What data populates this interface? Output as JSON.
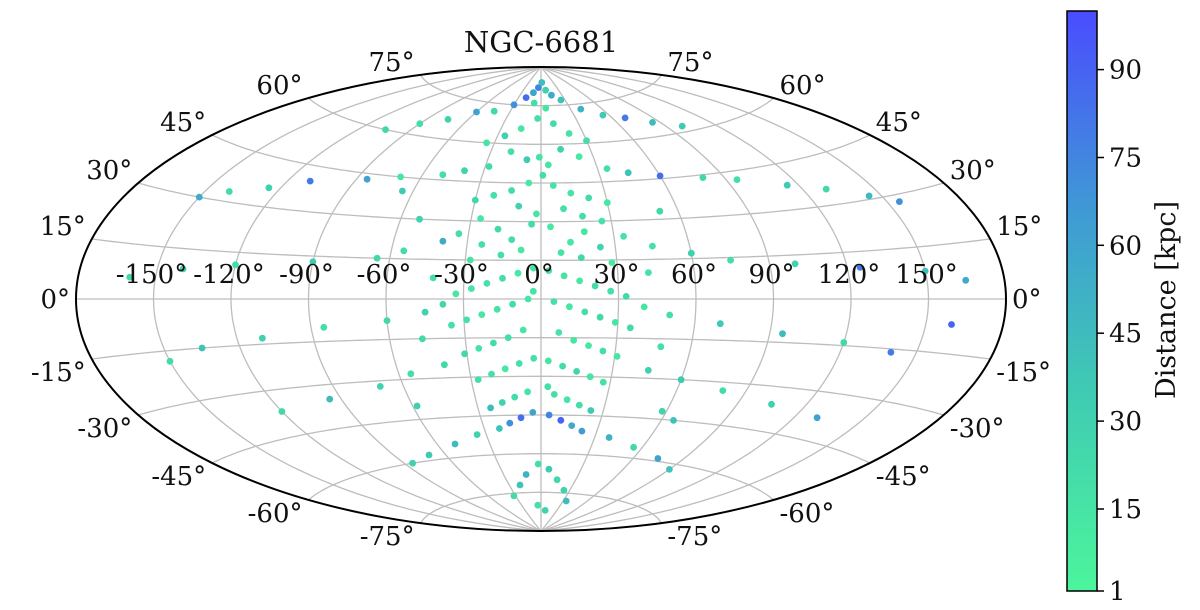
{
  "chart_data": {
    "type": "scatter",
    "projection": "aitoff",
    "title": "NGC-6681",
    "x_tick_labels": [
      "-150°",
      "-120°",
      "-90°",
      "-60°",
      "-30°",
      "0°",
      "30°",
      "60°",
      "90°",
      "120°",
      "150°"
    ],
    "x_tick_values": [
      -150,
      -120,
      -90,
      -60,
      -30,
      0,
      30,
      60,
      90,
      120,
      150
    ],
    "y_tick_labels": [
      "-75°",
      "-60°",
      "-45°",
      "-30°",
      "-15°",
      "0°",
      "15°",
      "30°",
      "45°",
      "60°",
      "75°"
    ],
    "y_tick_values": [
      -75,
      -60,
      -45,
      -30,
      -15,
      0,
      15,
      30,
      45,
      60,
      75
    ],
    "xlim": [
      -180,
      180
    ],
    "ylim": [
      -90,
      90
    ],
    "grid": true,
    "colorbar": {
      "label": "Distance [kpc]",
      "tick_labels": [
        "1",
        "15",
        "30",
        "45",
        "60",
        "75",
        "90"
      ],
      "tick_values": [
        1,
        15,
        30,
        45,
        60,
        75,
        90
      ],
      "range": [
        1,
        100
      ],
      "color_low": "#4cf59c",
      "color_high": "#4a4cff"
    },
    "series": [
      {
        "marker_color_by": "distance_kpc",
        "points": [
          [
            -5,
            82,
            75
          ],
          [
            2,
            84,
            45
          ],
          [
            -12,
            80,
            60
          ],
          [
            8,
            81,
            30
          ],
          [
            -20,
            78,
            85
          ],
          [
            15,
            79,
            55
          ],
          [
            -8,
            76,
            20
          ],
          [
            25,
            77,
            40
          ],
          [
            -30,
            75,
            70
          ],
          [
            5,
            74,
            15
          ],
          [
            40,
            73,
            50
          ],
          [
            -45,
            72,
            25
          ],
          [
            55,
            70,
            35
          ],
          [
            -60,
            71,
            60
          ],
          [
            70,
            68,
            80
          ],
          [
            -75,
            67,
            30
          ],
          [
            85,
            65,
            45
          ],
          [
            -90,
            64,
            20
          ],
          [
            100,
            62,
            35
          ],
          [
            -105,
            60,
            25
          ],
          [
            -3,
            70,
            18
          ],
          [
            10,
            68,
            22
          ],
          [
            -15,
            66,
            12
          ],
          [
            20,
            64,
            16
          ],
          [
            -25,
            63,
            30
          ],
          [
            30,
            61,
            20
          ],
          [
            -35,
            60,
            14
          ],
          [
            12,
            58,
            28
          ],
          [
            -18,
            57,
            19
          ],
          [
            22,
            55,
            12
          ],
          [
            -8,
            54,
            35
          ],
          [
            4,
            52,
            15
          ],
          [
            -28,
            51,
            22
          ],
          [
            35,
            50,
            18
          ],
          [
            -40,
            49,
            28
          ],
          [
            45,
            48,
            40
          ],
          [
            -50,
            47,
            20
          ],
          [
            60,
            46,
            85
          ],
          [
            -70,
            45,
            15
          ],
          [
            80,
            44,
            25
          ],
          [
            -85,
            43,
            60
          ],
          [
            95,
            42,
            20
          ],
          [
            -110,
            40,
            80
          ],
          [
            115,
            38,
            35
          ],
          [
            -125,
            36,
            30
          ],
          [
            130,
            35,
            25
          ],
          [
            -140,
            33,
            22
          ],
          [
            145,
            31,
            45
          ],
          [
            -150,
            30,
            55
          ],
          [
            155,
            28,
            70
          ],
          [
            -6,
            45,
            12
          ],
          [
            6,
            44,
            16
          ],
          [
            -14,
            42,
            20
          ],
          [
            14,
            41,
            14
          ],
          [
            -22,
            40,
            18
          ],
          [
            22,
            39,
            22
          ],
          [
            -30,
            38,
            26
          ],
          [
            30,
            37,
            12
          ],
          [
            -10,
            36,
            30
          ],
          [
            10,
            35,
            18
          ],
          [
            -2,
            33,
            15
          ],
          [
            18,
            32,
            20
          ],
          [
            -26,
            31,
            13
          ],
          [
            26,
            30,
            17
          ],
          [
            -4,
            29,
            22
          ],
          [
            4,
            28,
            11
          ],
          [
            -18,
            27,
            25
          ],
          [
            18,
            26,
            14
          ],
          [
            -34,
            25,
            19
          ],
          [
            34,
            24,
            16
          ],
          [
            -12,
            23,
            21
          ],
          [
            12,
            22,
            13
          ],
          [
            -24,
            21,
            18
          ],
          [
            24,
            20,
            27
          ],
          [
            -8,
            19,
            12
          ],
          [
            8,
            18,
            15
          ],
          [
            -16,
            17,
            20
          ],
          [
            16,
            16,
            24
          ],
          [
            -28,
            15,
            16
          ],
          [
            28,
            14,
            11
          ],
          [
            -40,
            22,
            55
          ],
          [
            45,
            20,
            18
          ],
          [
            -55,
            18,
            22
          ],
          [
            60,
            17,
            30
          ],
          [
            -65,
            15,
            25
          ],
          [
            75,
            14,
            20
          ],
          [
            -90,
            13,
            35
          ],
          [
            100,
            12,
            28
          ],
          [
            -120,
            11,
            22
          ],
          [
            125,
            10,
            80
          ],
          [
            -140,
            9,
            30
          ],
          [
            150,
            8,
            40
          ],
          [
            -160,
            6,
            25
          ],
          [
            165,
            5,
            55
          ],
          [
            -3,
            12,
            14
          ],
          [
            3,
            11,
            18
          ],
          [
            -9,
            10,
            12
          ],
          [
            9,
            9,
            16
          ],
          [
            -15,
            8,
            20
          ],
          [
            15,
            7,
            13
          ],
          [
            -21,
            6,
            17
          ],
          [
            21,
            5,
            22
          ],
          [
            -27,
            4,
            15
          ],
          [
            27,
            3,
            19
          ],
          [
            -33,
            2,
            12
          ],
          [
            33,
            1,
            24
          ],
          [
            -5,
            0,
            14
          ],
          [
            5,
            -1,
            18
          ],
          [
            -11,
            -2,
            21
          ],
          [
            11,
            -3,
            13
          ],
          [
            -17,
            -4,
            16
          ],
          [
            17,
            -5,
            20
          ],
          [
            -23,
            -6,
            12
          ],
          [
            23,
            -7,
            25
          ],
          [
            -29,
            -8,
            17
          ],
          [
            29,
            -9,
            14
          ],
          [
            -35,
            -10,
            19
          ],
          [
            35,
            -11,
            22
          ],
          [
            -7,
            -12,
            13
          ],
          [
            7,
            -13,
            16
          ],
          [
            -45,
            -5,
            30
          ],
          [
            50,
            -6,
            20
          ],
          [
            -60,
            -8,
            25
          ],
          [
            70,
            -9,
            35
          ],
          [
            -85,
            -10,
            20
          ],
          [
            95,
            -12,
            45
          ],
          [
            -110,
            -13,
            30
          ],
          [
            120,
            -14,
            25
          ],
          [
            -135,
            -15,
            40
          ],
          [
            140,
            -16,
            80
          ],
          [
            -150,
            -18,
            22
          ],
          [
            160,
            -7,
            90
          ],
          [
            -13,
            -15,
            18
          ],
          [
            13,
            -16,
            14
          ],
          [
            -19,
            -17,
            21
          ],
          [
            19,
            -18,
            12
          ],
          [
            -25,
            -19,
            16
          ],
          [
            25,
            -20,
            20
          ],
          [
            -31,
            -21,
            24
          ],
          [
            31,
            -22,
            13
          ],
          [
            -3,
            -23,
            17
          ],
          [
            3,
            -24,
            15
          ],
          [
            -9,
            -25,
            19
          ],
          [
            9,
            -26,
            22
          ],
          [
            -15,
            -27,
            12
          ],
          [
            15,
            -28,
            26
          ],
          [
            -21,
            -29,
            18
          ],
          [
            21,
            -30,
            14
          ],
          [
            -27,
            -31,
            20
          ],
          [
            27,
            -32,
            16
          ],
          [
            -40,
            -25,
            25
          ],
          [
            45,
            -27,
            30
          ],
          [
            -55,
            -28,
            20
          ],
          [
            60,
            -30,
            35
          ],
          [
            -70,
            -32,
            28
          ],
          [
            80,
            -33,
            22
          ],
          [
            -95,
            -35,
            45
          ],
          [
            105,
            -36,
            30
          ],
          [
            -120,
            -37,
            25
          ],
          [
            130,
            -38,
            60
          ],
          [
            -6,
            -36,
            15
          ],
          [
            6,
            -37,
            18
          ],
          [
            -12,
            -38,
            22
          ],
          [
            12,
            -39,
            14
          ],
          [
            -18,
            -40,
            30
          ],
          [
            18,
            -41,
            20
          ],
          [
            -24,
            -42,
            45
          ],
          [
            24,
            -43,
            35
          ],
          [
            -4,
            -44,
            60
          ],
          [
            4,
            -45,
            75
          ],
          [
            -10,
            -46,
            85
          ],
          [
            10,
            -47,
            90
          ],
          [
            -16,
            -48,
            70
          ],
          [
            16,
            -49,
            55
          ],
          [
            -22,
            -50,
            40
          ],
          [
            22,
            -51,
            65
          ],
          [
            -35,
            -52,
            30
          ],
          [
            38,
            -53,
            50
          ],
          [
            -50,
            -55,
            45
          ],
          [
            55,
            -56,
            25
          ],
          [
            -70,
            -58,
            35
          ],
          [
            75,
            -59,
            60
          ],
          [
            -85,
            -60,
            28
          ],
          [
            90,
            -62,
            40
          ],
          [
            -2,
            -64,
            20
          ],
          [
            6,
            -66,
            35
          ],
          [
            -12,
            -68,
            50
          ],
          [
            14,
            -70,
            25
          ],
          [
            -20,
            -72,
            40
          ],
          [
            24,
            -74,
            30
          ],
          [
            -32,
            -76,
            22
          ],
          [
            34,
            -78,
            45
          ],
          [
            -5,
            -80,
            18
          ],
          [
            8,
            -82,
            28
          ],
          [
            -1,
            55,
            16
          ],
          [
            1,
            48,
            20
          ],
          [
            -3,
            3,
            15
          ],
          [
            3,
            -34,
            18
          ],
          [
            -38,
            -2,
            26
          ],
          [
            40,
            -3,
            14
          ],
          [
            -42,
            8,
            20
          ],
          [
            42,
            10,
            17
          ],
          [
            -47,
            -15,
            22
          ],
          [
            48,
            -18,
            19
          ],
          [
            -52,
            30,
            28
          ],
          [
            52,
            33,
            24
          ],
          [
            -58,
            -40,
            32
          ],
          [
            58,
            -42,
            27
          ],
          [
            -65,
            40,
            35
          ],
          [
            66,
            -45,
            40
          ]
        ]
      }
    ]
  }
}
